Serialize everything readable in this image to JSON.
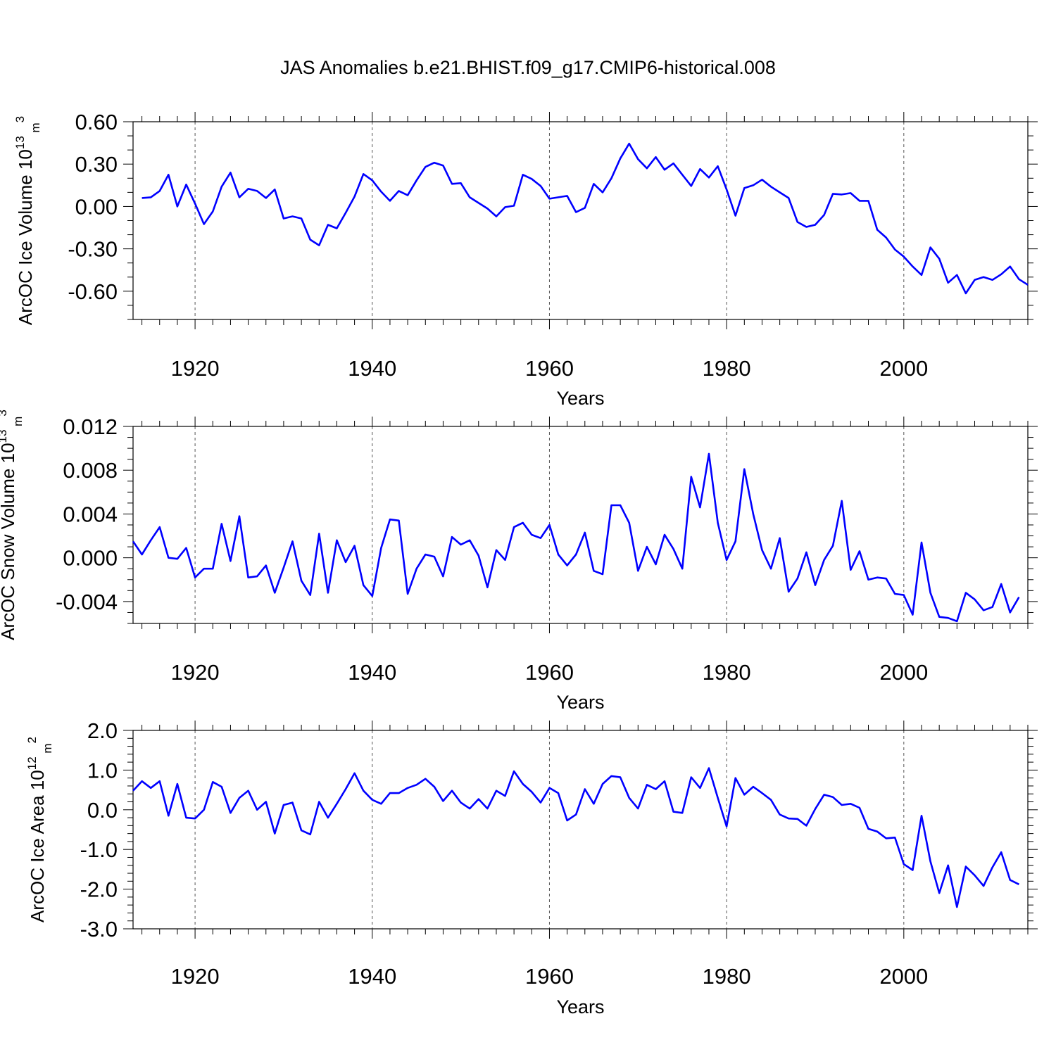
{
  "chart_data": [
    {
      "type": "line",
      "title": "JAS Anomalies b.e21.BHIST.f09_g17.CMIP6-historical.008",
      "xlabel": "Years",
      "ylabel": "ArcOC Ice Volume 10",
      "ylabel_exp": "13",
      "ylabel_unit": " m",
      "ylabel_unit_exp": "3",
      "xlim": [
        1913,
        2014
      ],
      "ylim": [
        -0.8,
        0.6
      ],
      "ymajor": [
        -0.6,
        -0.3,
        0.0,
        0.3,
        0.6
      ],
      "ytick_labels": [
        "-0.60",
        "-0.30",
        "0.00",
        "0.30",
        "0.60"
      ],
      "yminor_step": 0.1,
      "xmajor": [
        1920,
        1940,
        1960,
        1980,
        2000
      ],
      "xtick_labels": [
        "1920",
        "1940",
        "1960",
        "1980",
        "2000"
      ],
      "grid": "x-dashed",
      "line_color": "#0000ff",
      "x_start": 1914,
      "values": [
        0.06,
        0.065,
        0.11,
        0.225,
        0.0,
        0.155,
        0.02,
        -0.125,
        -0.035,
        0.14,
        0.24,
        0.065,
        0.125,
        0.11,
        0.06,
        0.12,
        -0.085,
        -0.07,
        -0.085,
        -0.235,
        -0.275,
        -0.13,
        -0.155,
        -0.045,
        0.07,
        0.23,
        0.185,
        0.105,
        0.04,
        0.11,
        0.08,
        0.185,
        0.28,
        0.31,
        0.29,
        0.16,
        0.165,
        0.065,
        0.025,
        -0.015,
        -0.07,
        -0.005,
        0.005,
        0.225,
        0.195,
        0.145,
        0.055,
        0.065,
        0.075,
        -0.04,
        -0.01,
        0.16,
        0.1,
        0.2,
        0.34,
        0.445,
        0.335,
        0.27,
        0.35,
        0.26,
        0.305,
        0.225,
        0.145,
        0.265,
        0.205,
        0.285,
        0.12,
        -0.065,
        0.13,
        0.15,
        0.19,
        0.14,
        0.1,
        0.06,
        -0.11,
        -0.145,
        -0.13,
        -0.06,
        0.09,
        0.085,
        0.095,
        0.04,
        0.04,
        -0.165,
        -0.22,
        -0.305,
        -0.355,
        -0.425,
        -0.485,
        -0.29,
        -0.37,
        -0.54,
        -0.485,
        -0.615,
        -0.52,
        -0.5,
        -0.52,
        -0.48,
        -0.425,
        -0.515,
        -0.555
      ]
    },
    {
      "type": "line",
      "xlabel": "Years",
      "ylabel": "ArcOC Snow Volume 10",
      "ylabel_exp": "13",
      "ylabel_unit": " m",
      "ylabel_unit_exp": "3",
      "xlim": [
        1913,
        2014
      ],
      "ylim": [
        -0.006,
        0.012
      ],
      "ymajor": [
        -0.004,
        0.0,
        0.004,
        0.008,
        0.012
      ],
      "ytick_labels": [
        "-0.004",
        "0.000",
        "0.004",
        "0.008",
        "0.012"
      ],
      "yminor_step": 0.001,
      "xmajor": [
        1920,
        1940,
        1960,
        1980,
        2000
      ],
      "xtick_labels": [
        "1920",
        "1940",
        "1960",
        "1980",
        "2000"
      ],
      "grid": "x-dashed",
      "line_color": "#0000ff",
      "x_start": 1913,
      "values": [
        0.0015,
        0.0003,
        0.0016,
        0.0028,
        0.0,
        -0.0001,
        0.0009,
        -0.0018,
        -0.001,
        -0.001,
        0.0031,
        -0.0003,
        0.0038,
        -0.0018,
        -0.0017,
        -0.0007,
        -0.0032,
        -0.0009,
        0.0015,
        -0.0021,
        -0.0034,
        0.0022,
        -0.0032,
        0.0016,
        -0.0004,
        0.0011,
        -0.0025,
        -0.0035,
        0.0009,
        0.0035,
        0.0034,
        -0.0033,
        -0.001,
        0.0003,
        0.0001,
        -0.0017,
        0.0019,
        0.0012,
        0.0016,
        0.0002,
        -0.0027,
        0.0007,
        -0.0002,
        0.0028,
        0.0032,
        0.0021,
        0.0018,
        0.003,
        0.0003,
        -0.0007,
        0.0003,
        0.0023,
        -0.0012,
        -0.0015,
        0.0048,
        0.0048,
        0.0032,
        -0.0012,
        0.001,
        -0.0006,
        0.0021,
        0.0008,
        -0.001,
        0.0074,
        0.0046,
        0.0095,
        0.0032,
        -0.0002,
        0.0015,
        0.0081,
        0.004,
        0.0007,
        -0.001,
        0.0018,
        -0.0031,
        -0.0019,
        0.0005,
        -0.0025,
        -0.0002,
        0.0011,
        0.0052,
        -0.0011,
        0.0006,
        -0.002,
        -0.0018,
        -0.0019,
        -0.0033,
        -0.0034,
        -0.0052,
        0.0014,
        -0.0032,
        -0.0054,
        -0.0055,
        -0.0058,
        -0.0032,
        -0.0038,
        -0.0048,
        -0.0045,
        -0.0024,
        -0.005,
        -0.0036
      ]
    },
    {
      "type": "line",
      "xlabel": "Years",
      "ylabel": "ArcOC Ice Area 10",
      "ylabel_exp": "12",
      "ylabel_unit": " m",
      "ylabel_unit_exp": "2",
      "xlim": [
        1913,
        2014
      ],
      "ylim": [
        -3.0,
        2.0
      ],
      "ymajor": [
        -3.0,
        -2.0,
        -1.0,
        0.0,
        1.0,
        2.0
      ],
      "ytick_labels": [
        "-3.0",
        "-2.0",
        "-1.0",
        "0.0",
        "1.0",
        "2.0"
      ],
      "yminor_step": 0.2,
      "xmajor": [
        1920,
        1940,
        1960,
        1980,
        2000
      ],
      "xtick_labels": [
        "1920",
        "1940",
        "1960",
        "1980",
        "2000"
      ],
      "grid": "x-dashed",
      "line_color": "#0000ff",
      "x_start": 1913,
      "values": [
        0.48,
        0.72,
        0.55,
        0.72,
        -0.15,
        0.65,
        -0.2,
        -0.22,
        0.0,
        0.7,
        0.58,
        -0.08,
        0.3,
        0.48,
        0.0,
        0.2,
        -0.6,
        0.12,
        0.18,
        -0.52,
        -0.62,
        0.2,
        -0.2,
        0.15,
        0.52,
        0.92,
        0.48,
        0.25,
        0.15,
        0.42,
        0.42,
        0.55,
        0.63,
        0.78,
        0.58,
        0.22,
        0.48,
        0.18,
        0.03,
        0.27,
        0.03,
        0.48,
        0.35,
        0.97,
        0.65,
        0.45,
        0.18,
        0.55,
        0.42,
        -0.27,
        -0.12,
        0.52,
        0.15,
        0.65,
        0.85,
        0.82,
        0.3,
        0.03,
        0.63,
        0.52,
        0.72,
        -0.05,
        -0.08,
        0.82,
        0.55,
        1.05,
        0.3,
        -0.42,
        0.8,
        0.38,
        0.58,
        0.42,
        0.25,
        -0.12,
        -0.22,
        -0.23,
        -0.4,
        0.02,
        0.38,
        0.32,
        0.12,
        0.15,
        0.05,
        -0.48,
        -0.55,
        -0.72,
        -0.7,
        -1.37,
        -1.52,
        -0.15,
        -1.3,
        -2.1,
        -1.4,
        -2.45,
        -1.43,
        -1.65,
        -1.92,
        -1.45,
        -1.07,
        -1.77,
        -1.88
      ]
    }
  ]
}
